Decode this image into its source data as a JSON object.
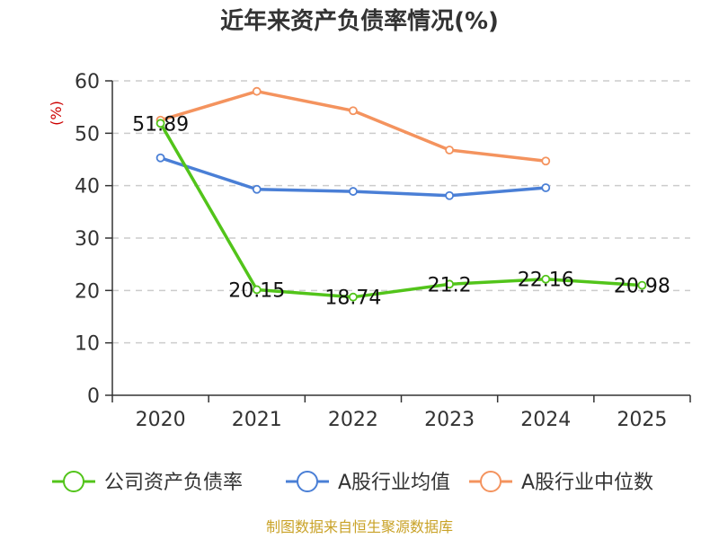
{
  "chart_data": {
    "type": "line",
    "title": "近年来资产负债率情况(%)",
    "ylabel": "(%)",
    "xlabel": "",
    "categories": [
      "2020",
      "2021",
      "2022",
      "2023",
      "2024",
      "2025"
    ],
    "ylim": [
      0,
      60
    ],
    "yticks": [
      0,
      10,
      20,
      30,
      40,
      50,
      60
    ],
    "grid": true,
    "legend_position": "bottom",
    "series": [
      {
        "name": "公司资产负债率",
        "color": "#52c41a",
        "values": [
          51.89,
          20.15,
          18.74,
          21.2,
          22.16,
          20.98
        ],
        "labels": [
          "51.89",
          "20.15",
          "18.74",
          "21.2",
          "22.16",
          "20.98"
        ]
      },
      {
        "name": "A股行业均值",
        "color": "#4a7fd6",
        "values": [
          45.3,
          39.3,
          38.9,
          38.1,
          39.6,
          null
        ]
      },
      {
        "name": "A股行业中位数",
        "color": "#f4935e",
        "values": [
          52.5,
          58.0,
          54.3,
          46.8,
          44.7,
          null
        ]
      }
    ]
  },
  "source": "制图数据来自恒生聚源数据库"
}
